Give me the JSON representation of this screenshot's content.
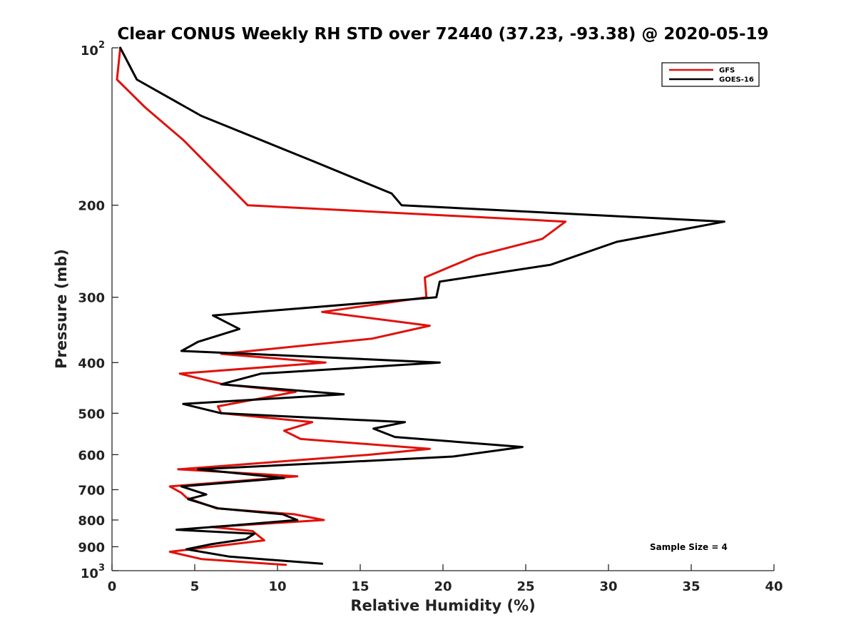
{
  "chart_data": {
    "type": "line",
    "title": "Clear CONUS Weekly RH STD over 72440 (37.23, -93.38) @ 2020-05-19",
    "xlabel": "Relative Humidity (%)",
    "ylabel": "Pressure (mb)",
    "xlim": [
      0,
      40
    ],
    "ylim": [
      100,
      1000
    ],
    "y_scale": "log",
    "y_reversed": true,
    "x_ticks": [
      "0",
      "5",
      "10",
      "15",
      "20",
      "25",
      "30",
      "35",
      "40"
    ],
    "y_ticks": [
      {
        "value": 100,
        "base": "10",
        "exp": "2"
      },
      {
        "value": 200,
        "label": "200"
      },
      {
        "value": 300,
        "label": "300"
      },
      {
        "value": 400,
        "label": "400"
      },
      {
        "value": 500,
        "label": "500"
      },
      {
        "value": 600,
        "label": "600"
      },
      {
        "value": 700,
        "label": "700"
      },
      {
        "value": 800,
        "label": "800"
      },
      {
        "value": 900,
        "label": "900"
      },
      {
        "value": 1000,
        "base": "10",
        "exp": "3"
      }
    ],
    "legend_position": "top-right",
    "annotation": "Sample Size = 4",
    "grid": false,
    "series": [
      {
        "name": "GFS",
        "color": "#e0120c",
        "points": [
          [
            0.5,
            100
          ],
          [
            0.3,
            115
          ],
          [
            2.0,
            130
          ],
          [
            4.3,
            150
          ],
          [
            6.0,
            170
          ],
          [
            8.2,
            200
          ],
          [
            27.4,
            215
          ],
          [
            26.0,
            232
          ],
          [
            22.0,
            250
          ],
          [
            18.9,
            275
          ],
          [
            19.0,
            300
          ],
          [
            12.7,
            320
          ],
          [
            19.2,
            340
          ],
          [
            15.7,
            360
          ],
          [
            6.6,
            385
          ],
          [
            12.9,
            400
          ],
          [
            4.1,
            420
          ],
          [
            6.7,
            440
          ],
          [
            11.1,
            455
          ],
          [
            6.4,
            485
          ],
          [
            6.6,
            500
          ],
          [
            12.1,
            520
          ],
          [
            10.4,
            540
          ],
          [
            11.4,
            560
          ],
          [
            19.2,
            585
          ],
          [
            15.6,
            600
          ],
          [
            4.0,
            640
          ],
          [
            11.2,
            660
          ],
          [
            3.5,
            690
          ],
          [
            4.2,
            710
          ],
          [
            4.5,
            725
          ],
          [
            6.3,
            760
          ],
          [
            11.0,
            780
          ],
          [
            12.8,
            800
          ],
          [
            6.0,
            825
          ],
          [
            8.5,
            840
          ],
          [
            9.2,
            875
          ],
          [
            3.5,
            920
          ],
          [
            5.4,
            950
          ],
          [
            10.5,
            975
          ]
        ]
      },
      {
        "name": "GOES-16",
        "color": "#000000",
        "points": [
          [
            0.5,
            100
          ],
          [
            1.5,
            115
          ],
          [
            5.4,
            135
          ],
          [
            12.2,
            165
          ],
          [
            16.9,
            190
          ],
          [
            17.5,
            200
          ],
          [
            37.0,
            215
          ],
          [
            30.5,
            235
          ],
          [
            26.5,
            260
          ],
          [
            19.8,
            280
          ],
          [
            19.6,
            300
          ],
          [
            6.1,
            325
          ],
          [
            7.7,
            345
          ],
          [
            5.2,
            365
          ],
          [
            4.2,
            380
          ],
          [
            8.3,
            385
          ],
          [
            19.8,
            400
          ],
          [
            9.0,
            420
          ],
          [
            6.6,
            440
          ],
          [
            14.0,
            460
          ],
          [
            4.3,
            480
          ],
          [
            6.6,
            500
          ],
          [
            17.7,
            520
          ],
          [
            15.8,
            535
          ],
          [
            17.1,
            555
          ],
          [
            24.8,
            580
          ],
          [
            20.6,
            605
          ],
          [
            14.0,
            620
          ],
          [
            5.2,
            640
          ],
          [
            10.4,
            665
          ],
          [
            4.2,
            690
          ],
          [
            5.7,
            715
          ],
          [
            4.6,
            730
          ],
          [
            6.4,
            760
          ],
          [
            10.3,
            780
          ],
          [
            11.2,
            800
          ],
          [
            7.2,
            820
          ],
          [
            3.9,
            835
          ],
          [
            8.6,
            850
          ],
          [
            8.1,
            870
          ],
          [
            6.0,
            890
          ],
          [
            4.5,
            910
          ],
          [
            7.1,
            940
          ],
          [
            12.7,
            970
          ]
        ]
      }
    ]
  }
}
